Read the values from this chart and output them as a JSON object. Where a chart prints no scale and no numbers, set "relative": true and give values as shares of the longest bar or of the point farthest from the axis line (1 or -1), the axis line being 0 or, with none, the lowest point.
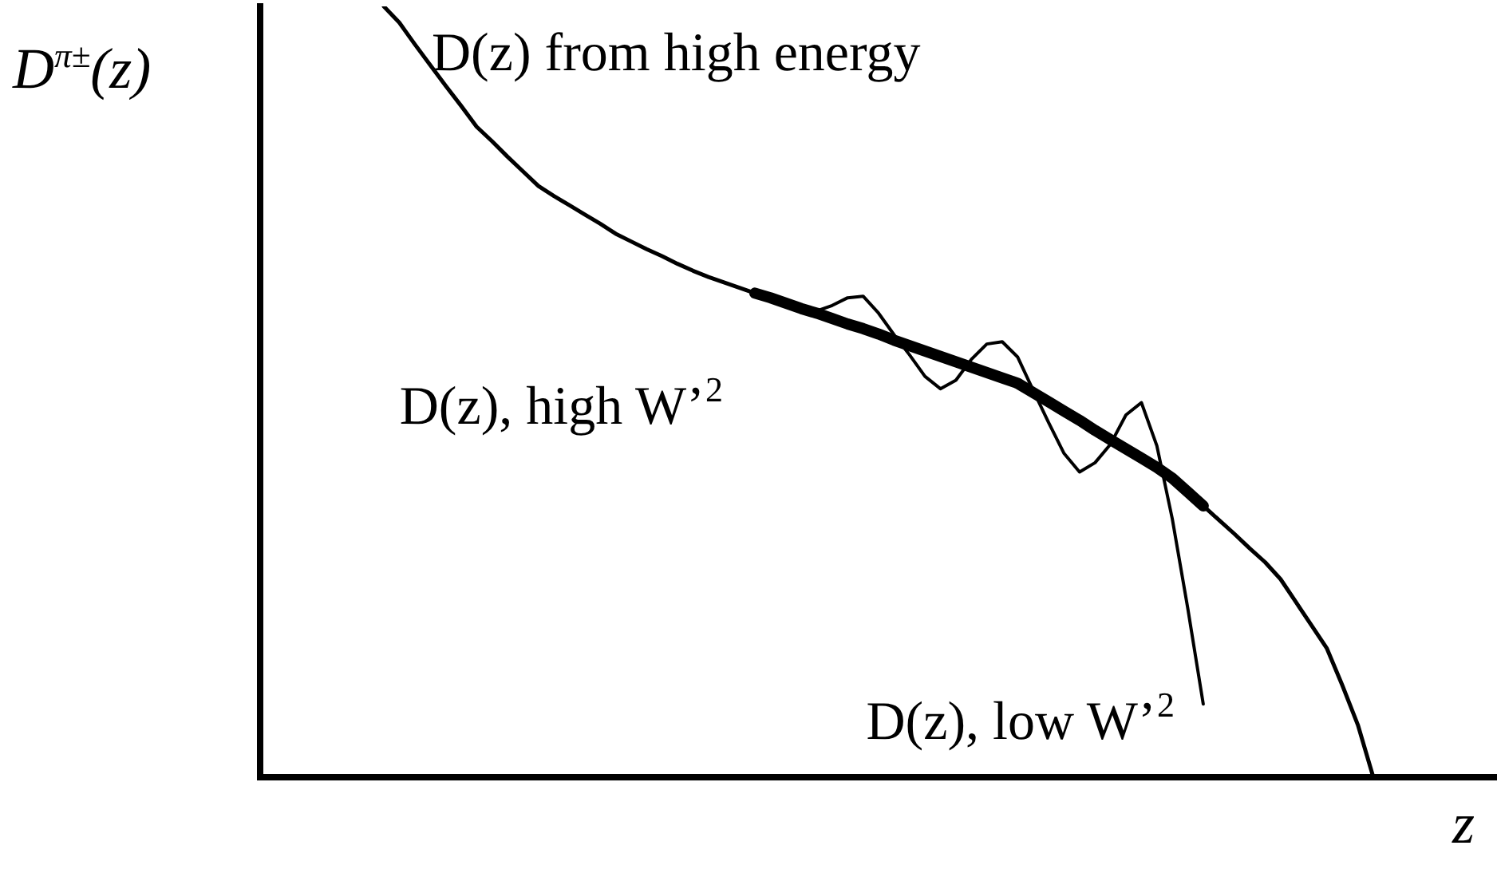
{
  "chart_data": {
    "type": "line",
    "relative": true,
    "xlabel": "z",
    "ylabel": "D$^{π±}$(z)",
    "legend": false,
    "grid": false,
    "tick_labels": false,
    "marker": "none",
    "line_style": "solid",
    "categories": [
      null,
      null,
      null,
      null,
      null,
      null,
      null,
      null,
      null,
      null,
      null,
      null,
      null,
      null,
      null,
      null,
      null,
      null,
      null,
      null,
      null,
      null,
      null,
      null,
      null,
      null,
      null,
      null,
      null,
      null,
      null,
      null,
      null,
      null,
      null,
      null,
      null,
      null,
      null,
      null,
      null,
      null,
      null,
      null,
      null,
      null,
      null,
      null,
      null,
      null,
      null,
      null,
      null,
      null,
      null,
      null,
      null,
      null,
      null,
      null,
      null,
      null,
      null,
      null,
      null,
      null,
      null,
      null,
      null,
      null,
      null,
      null,
      null,
      null,
      null,
      null,
      null,
      null,
      null,
      null,
      null
    ],
    "series": [
      {
        "name": "D(z) from high energy",
        "color": "#000000",
        "values": [
          null,
          null,
          null,
          null,
          null,
          null,
          null,
          null,
          1.0,
          0.979,
          0.951,
          0.924,
          0.897,
          0.871,
          0.844,
          0.825,
          0.805,
          0.786,
          0.767,
          0.754,
          0.742,
          0.73,
          0.718,
          0.705,
          0.695,
          0.685,
          0.676,
          0.666,
          0.657,
          0.649,
          0.642,
          0.635,
          0.628,
          0.622,
          0.615,
          0.608,
          0.602,
          0.595,
          0.588,
          0.582,
          0.575,
          0.567,
          0.56,
          0.553,
          0.546,
          0.539,
          0.532,
          0.525,
          0.518,
          0.511,
          0.499,
          0.487,
          0.475,
          0.463,
          0.45,
          0.438,
          0.426,
          0.414,
          0.402,
          0.388,
          0.37,
          0.352,
          0.334,
          0.316,
          0.297,
          0.279,
          0.257,
          0.227,
          0.197,
          0.167,
          0.119,
          0.068,
          0,
          null,
          null,
          null,
          null,
          null,
          null,
          null,
          null
        ]
      },
      {
        "name": "D(z), high W’$^{2}$",
        "color": "#000000",
        "values": [
          null,
          null,
          null,
          null,
          null,
          null,
          null,
          null,
          null,
          null,
          null,
          null,
          null,
          null,
          null,
          null,
          null,
          null,
          null,
          null,
          null,
          null,
          null,
          null,
          null,
          null,
          null,
          null,
          null,
          null,
          null,
          null,
          0.628,
          0.622,
          0.615,
          0.608,
          0.602,
          0.595,
          0.588,
          0.582,
          0.575,
          0.567,
          0.56,
          0.553,
          0.546,
          0.539,
          0.532,
          0.525,
          0.518,
          0.511,
          0.499,
          0.487,
          0.475,
          0.463,
          0.45,
          0.438,
          0.426,
          0.414,
          0.402,
          0.388,
          0.37,
          0.352,
          null,
          null,
          null,
          null,
          null,
          null,
          null,
          null,
          null,
          null,
          null,
          null,
          null,
          null,
          null,
          null,
          null,
          null,
          null
        ]
      },
      {
        "name": "D(z), low W’$^{2}$",
        "color": "#000000",
        "values": [
          null,
          null,
          null,
          null,
          null,
          null,
          null,
          null,
          null,
          null,
          null,
          null,
          null,
          null,
          null,
          null,
          null,
          null,
          null,
          null,
          null,
          null,
          null,
          null,
          null,
          null,
          null,
          null,
          null,
          null,
          null,
          null,
          0.628,
          0.622,
          0.615,
          0.608,
          0.605,
          0.612,
          0.622,
          0.624,
          0.602,
          0.574,
          0.548,
          0.52,
          0.504,
          0.515,
          0.542,
          0.562,
          0.565,
          0.545,
          0.502,
          0.46,
          0.42,
          0.396,
          0.408,
          0.432,
          0.47,
          0.486,
          0.43,
          0.335,
          0.219,
          0.095,
          null,
          null,
          null,
          null,
          null,
          null,
          null,
          null,
          null,
          null,
          null,
          null,
          null,
          null,
          null,
          null,
          null,
          null,
          null
        ]
      }
    ]
  }
}
